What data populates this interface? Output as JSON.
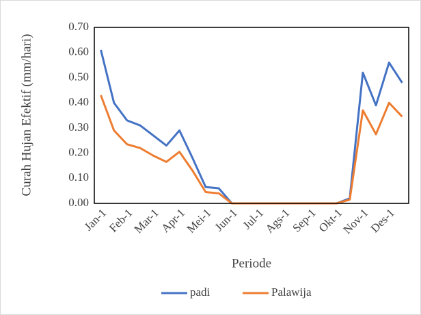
{
  "chart_data": {
    "type": "line",
    "y_label": "Curah Hujan Efektif (mm/hari)",
    "x_label": "Periode",
    "categories": [
      "Jan-1",
      null,
      "Feb-1",
      null,
      "Mar-1",
      null,
      "Apr-1",
      null,
      "Mei-1",
      null,
      "Jun-1",
      null,
      "Jul-1",
      null,
      "Ags-1",
      null,
      "Sep-1",
      null,
      "Okt-1",
      null,
      "Nov-1",
      null,
      "Des-1",
      null
    ],
    "series": [
      {
        "name": "padi",
        "color": "#4472c4",
        "values": [
          0.61,
          0.4,
          0.33,
          0.31,
          0.27,
          0.23,
          0.29,
          0.18,
          0.065,
          0.06,
          0,
          0,
          0,
          0,
          0,
          0,
          0,
          0,
          0,
          0.02,
          0.52,
          0.39,
          0.56,
          0.48
        ]
      },
      {
        "name": "Palawija",
        "color": "#ed7d31",
        "values": [
          0.43,
          0.29,
          0.235,
          0.22,
          0.19,
          0.165,
          0.205,
          0.13,
          0.045,
          0.04,
          0,
          0,
          0,
          0,
          0,
          0,
          0,
          0,
          0,
          0.015,
          0.37,
          0.275,
          0.4,
          0.345
        ]
      }
    ],
    "ylim": [
      0,
      0.7
    ],
    "yticks": [
      {
        "value": 0,
        "label": "0.00"
      },
      {
        "value": 0.1,
        "label": "0.10"
      },
      {
        "value": 0.2,
        "label": "0.20"
      },
      {
        "value": 0.3,
        "label": "0.30"
      },
      {
        "value": 0.4,
        "label": "0.40"
      },
      {
        "value": 0.5,
        "label": "0.50"
      },
      {
        "value": 0.6,
        "label": "0.60"
      },
      {
        "value": 0.7,
        "label": "0.70"
      }
    ],
    "grid": false,
    "legend": "bottom"
  }
}
